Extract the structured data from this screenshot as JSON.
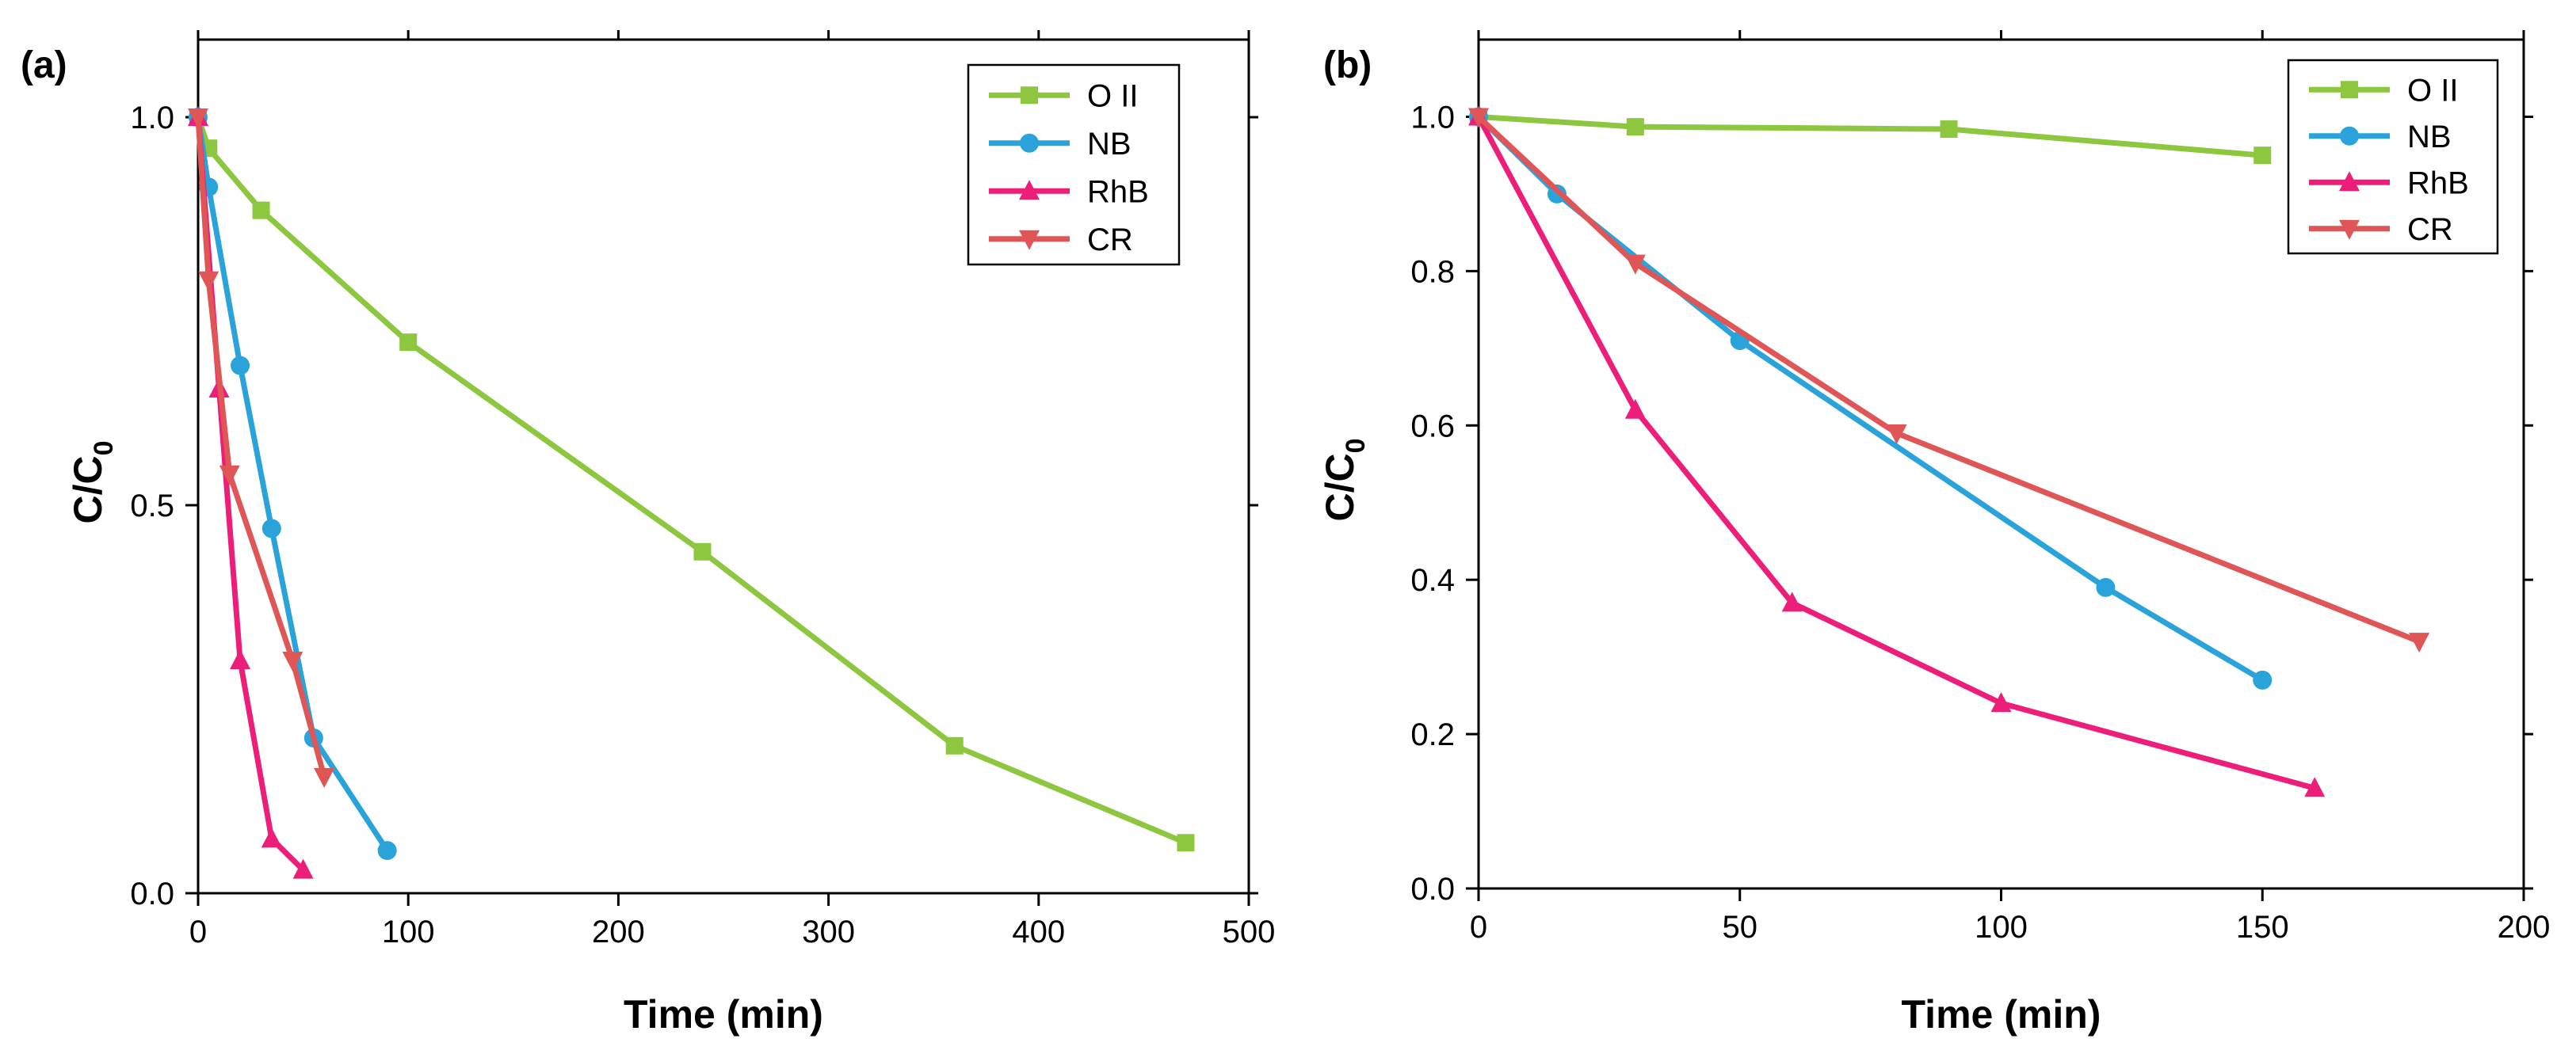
{
  "colors": {
    "O II": "#8DC63F",
    "NB": "#2AA3DB",
    "RhB": "#EC1E79",
    "CR": "#E05555"
  },
  "markers": {
    "O II": "square",
    "NB": "circle",
    "RhB": "triangle-up",
    "CR": "triangle-down"
  },
  "chart_data": [
    {
      "panel": "(a)",
      "type": "line",
      "xlabel": "Time (min)",
      "ylabel": "C/C",
      "ylabel_sub": "0",
      "xlim": [
        0,
        500
      ],
      "ylim": [
        0,
        1.1
      ],
      "xticks": [
        0,
        100,
        200,
        300,
        400,
        500
      ],
      "xtick_labels": [
        "0",
        "100",
        "200",
        "300",
        "400",
        "500"
      ],
      "yticks": [
        0,
        0.5,
        1.0
      ],
      "ytick_labels": [
        "0.0",
        "0.5",
        "1.0"
      ],
      "legend_position": "top-right",
      "series": [
        {
          "name": "O II",
          "x": [
            0,
            5,
            30,
            100,
            240,
            360,
            470
          ],
          "y": [
            1.0,
            0.96,
            0.88,
            0.71,
            0.44,
            0.19,
            0.065
          ]
        },
        {
          "name": "NB",
          "x": [
            0,
            5,
            20,
            35,
            55,
            90
          ],
          "y": [
            1.0,
            0.91,
            0.68,
            0.47,
            0.2,
            0.055
          ]
        },
        {
          "name": "RhB",
          "x": [
            0,
            10,
            20,
            35,
            50
          ],
          "y": [
            1.0,
            0.65,
            0.3,
            0.07,
            0.03
          ]
        },
        {
          "name": "CR",
          "x": [
            0,
            5,
            15,
            45,
            60
          ],
          "y": [
            1.0,
            0.79,
            0.54,
            0.3,
            0.15
          ]
        }
      ]
    },
    {
      "panel": "(b)",
      "type": "line",
      "xlabel": "Time (min)",
      "ylabel": "C/C",
      "ylabel_sub": "0",
      "xlim": [
        0,
        200
      ],
      "ylim": [
        0,
        1.1
      ],
      "xticks": [
        0,
        50,
        100,
        150,
        200
      ],
      "xtick_labels": [
        "0",
        "50",
        "100",
        "150",
        "200"
      ],
      "yticks": [
        0,
        0.2,
        0.4,
        0.6,
        0.8,
        1.0
      ],
      "ytick_labels": [
        "0.0",
        "0.2",
        "0.4",
        "0.6",
        "0.8",
        "1.0"
      ],
      "legend_position": "top-right",
      "series": [
        {
          "name": "O II",
          "x": [
            0,
            30,
            90,
            150
          ],
          "y": [
            1.0,
            0.987,
            0.984,
            0.95
          ]
        },
        {
          "name": "NB",
          "x": [
            0,
            15,
            50,
            120,
            150
          ],
          "y": [
            1.0,
            0.9,
            0.71,
            0.39,
            0.27
          ]
        },
        {
          "name": "RhB",
          "x": [
            0,
            30,
            60,
            100,
            160
          ],
          "y": [
            1.0,
            0.62,
            0.37,
            0.24,
            0.13
          ]
        },
        {
          "name": "CR",
          "x": [
            0,
            30,
            80,
            180
          ],
          "y": [
            1.0,
            0.81,
            0.59,
            0.32
          ]
        }
      ]
    }
  ]
}
